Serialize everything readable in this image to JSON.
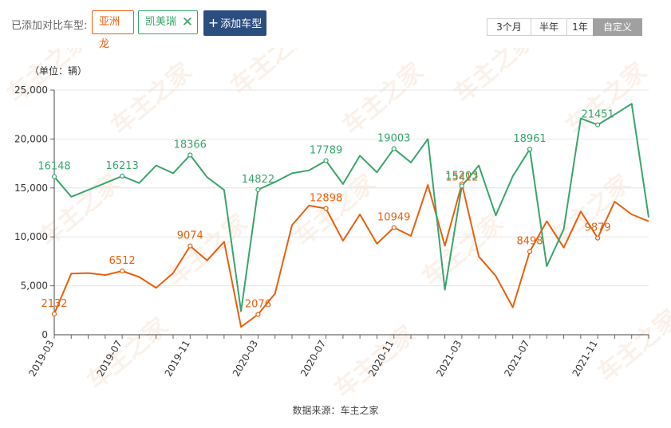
{
  "toolbar": {
    "added_label": "已添加对比车型:",
    "tags": [
      {
        "label": "亚洲龙",
        "color": "#e8600e"
      },
      {
        "label": "凯美瑞",
        "color": "#3aa46c"
      }
    ],
    "close_glyph": "✕",
    "add_button": "添加车型",
    "add_glyph": "+",
    "ranges": [
      "3个月",
      "半年",
      "1年",
      "自定义"
    ],
    "active_range": "自定义"
  },
  "footer": {
    "source": "数据来源：车主之家"
  },
  "chart_data": {
    "type": "line",
    "ylabel": "（单位：辆）",
    "ylim": [
      0,
      25000
    ],
    "yticks": [
      0,
      5000,
      10000,
      15000,
      20000,
      25000
    ],
    "ytick_labels": [
      "0",
      "5,000",
      "10,000",
      "15,000",
      "20,000",
      "25,000"
    ],
    "grid": true,
    "x": [
      "2019-03",
      "2019-04",
      "2019-05",
      "2019-06",
      "2019-07",
      "2019-08",
      "2019-09",
      "2019-10",
      "2019-11",
      "2019-12",
      "2020-01",
      "2020-02",
      "2020-03",
      "2020-04",
      "2020-05",
      "2020-06",
      "2020-07",
      "2020-08",
      "2020-09",
      "2020-10",
      "2020-11",
      "2020-12",
      "2021-01",
      "2021-02",
      "2021-03",
      "2021-04",
      "2021-05",
      "2021-06",
      "2021-07",
      "2021-08",
      "2021-09",
      "2021-10",
      "2021-11",
      "2021-12",
      "2022-01",
      "2022-02"
    ],
    "xtick_labels": [
      "2019-03",
      "2019-07",
      "2019-11",
      "2020-03",
      "2020-07",
      "2020-11",
      "2021-03",
      "2021-07",
      "2021-11"
    ],
    "xtick_every": 4,
    "series": [
      {
        "name": "亚洲龙",
        "color": "#e8600e",
        "values": [
          2132,
          6250,
          6300,
          6100,
          6512,
          5900,
          4800,
          6300,
          9074,
          7600,
          9500,
          800,
          2076,
          4200,
          11200,
          13200,
          12898,
          9600,
          12300,
          9300,
          10949,
          10100,
          15300,
          9100,
          15412,
          8000,
          6000,
          2800,
          8498,
          11600,
          8900,
          12600,
          9879,
          13600,
          12300,
          11600
        ],
        "labels": {
          "0": "2132",
          "4": "6512",
          "8": "9074",
          "12": "2076",
          "16": "12898",
          "20": "10949",
          "24": "15412",
          "28": "8498",
          "32": "9879"
        }
      },
      {
        "name": "凯美瑞",
        "color": "#3aa46c",
        "values": [
          16148,
          14100,
          14800,
          15500,
          16213,
          15500,
          17300,
          16500,
          18366,
          16100,
          14800,
          2400,
          14822,
          15600,
          16500,
          16800,
          17789,
          15400,
          18300,
          16600,
          19003,
          17600,
          20000,
          4600,
          15203,
          17300,
          12200,
          16200,
          18961,
          7000,
          10800,
          22100,
          21451,
          22500,
          23600,
          12000
        ],
        "labels": {
          "0": "16148",
          "4": "16213",
          "8": "18366",
          "12": "14822",
          "16": "17789",
          "20": "19003",
          "24": "15203",
          "28": "18961",
          "32": "21451"
        }
      }
    ],
    "watermark": "车主之家"
  }
}
